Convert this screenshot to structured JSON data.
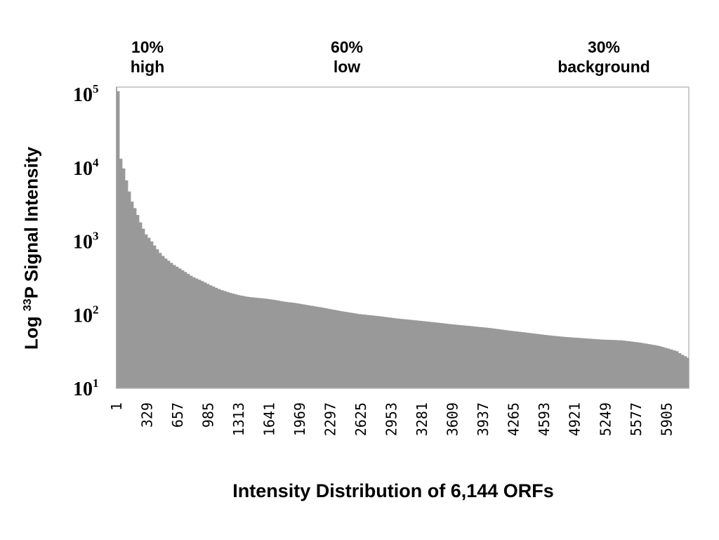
{
  "chart_data": {
    "type": "bar",
    "title": "",
    "xlabel": "Intensity Distribution of 6,144 ORFs",
    "ylabel": {
      "prefix": "Log ",
      "superscript": "33",
      "suffix": "P Signal Intensity"
    },
    "yscale": "log",
    "ylim": [
      10,
      125000
    ],
    "xlim": [
      1,
      6144
    ],
    "ytick_labels": [
      {
        "base": "10",
        "exp": "1",
        "value": 10
      },
      {
        "base": "10",
        "exp": "2",
        "value": 100
      },
      {
        "base": "10",
        "exp": "3",
        "value": 1000
      },
      {
        "base": "10",
        "exp": "4",
        "value": 10000
      },
      {
        "base": "10",
        "exp": "5",
        "value": 100000
      }
    ],
    "xtick_labels": [
      "1",
      "329",
      "657",
      "985",
      "1313",
      "1641",
      "1969",
      "2297",
      "2625",
      "2953",
      "3281",
      "3609",
      "3937",
      "4265",
      "4593",
      "4921",
      "5249",
      "5577",
      "5905"
    ],
    "bar_color": "#999999",
    "grid": false,
    "annotations": [
      {
        "pct": "10%",
        "label": "high"
      },
      {
        "pct": "60%",
        "label": "low"
      },
      {
        "pct": "30%",
        "label": "background"
      }
    ],
    "series": [
      {
        "x": [
          1,
          10,
          20,
          40,
          70,
          100,
          150,
          200,
          250,
          300,
          350,
          400,
          450,
          500,
          600,
          700,
          800,
          900,
          1000,
          1100,
          1200,
          1300,
          1400,
          1500,
          1600,
          1700,
          1800,
          1900,
          2000,
          2200,
          2400,
          2600,
          2800,
          3000,
          3200,
          3400,
          3600,
          3800,
          4000,
          4200,
          4400,
          4600,
          4800,
          5000,
          5200,
          5400,
          5600,
          5800,
          5900,
          6000,
          6050,
          6100,
          6144
        ],
        "values": [
          110000,
          50000,
          15000,
          12000,
          9000,
          6000,
          3500,
          2500,
          1700,
          1250,
          1050,
          850,
          700,
          600,
          480,
          400,
          330,
          290,
          250,
          220,
          200,
          185,
          175,
          170,
          165,
          158,
          150,
          145,
          138,
          125,
          112,
          102,
          96,
          89,
          84,
          79,
          74,
          70,
          66,
          61,
          57,
          53,
          50,
          48,
          46,
          45,
          42,
          38,
          35,
          32,
          29,
          27,
          25
        ]
      }
    ]
  }
}
